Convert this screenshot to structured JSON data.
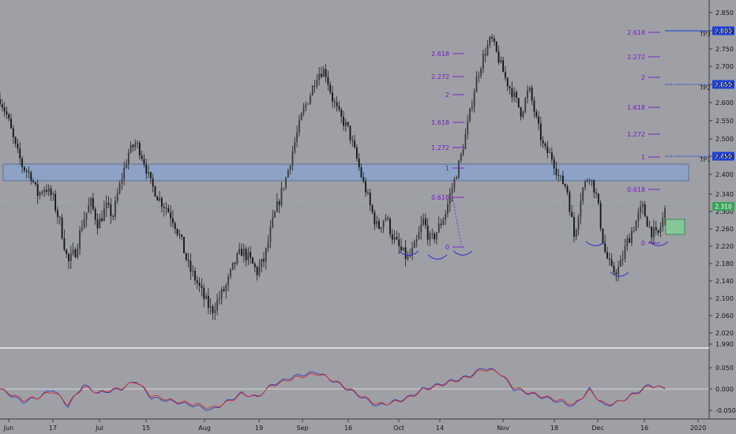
{
  "chart_data": [
    {
      "type": "candlestick",
      "ylim": [
        1.99,
        2.85
      ],
      "y_ticks": [
        "2.850",
        "2.800",
        "2.750",
        "2.700",
        "2.650",
        "2.600",
        "2.550",
        "2.500",
        "2.450",
        "2.400",
        "2.340",
        "2.300",
        "2.260",
        "2.220",
        "2.180",
        "2.140",
        "2.100",
        "2.060",
        "2.020",
        "1.990"
      ],
      "x_ticks": [
        "Jun",
        "17",
        "Jul",
        "15",
        "Aug",
        "19",
        "Sep",
        "16",
        "Oct",
        "14",
        "Nov",
        "18",
        "Dec",
        "16",
        "2020"
      ],
      "current_price": "2.310",
      "price_path": [
        [
          0,
          2.61
        ],
        [
          2,
          2.56
        ],
        [
          4,
          2.48
        ],
        [
          6,
          2.42
        ],
        [
          8,
          2.4
        ],
        [
          10,
          2.34
        ],
        [
          12,
          2.36
        ],
        [
          14,
          2.33
        ],
        [
          16,
          2.27
        ],
        [
          18,
          2.18
        ],
        [
          20,
          2.21
        ],
        [
          22,
          2.28
        ],
        [
          24,
          2.32
        ],
        [
          26,
          2.27
        ],
        [
          28,
          2.31
        ],
        [
          30,
          2.29
        ],
        [
          32,
          2.38
        ],
        [
          34,
          2.46
        ],
        [
          36,
          2.49
        ],
        [
          38,
          2.44
        ],
        [
          40,
          2.37
        ],
        [
          42,
          2.33
        ],
        [
          44,
          2.31
        ],
        [
          46,
          2.28
        ],
        [
          48,
          2.23
        ],
        [
          50,
          2.17
        ],
        [
          52,
          2.14
        ],
        [
          54,
          2.1
        ],
        [
          56,
          2.07
        ],
        [
          58,
          2.1
        ],
        [
          60,
          2.13
        ],
        [
          62,
          2.18
        ],
        [
          64,
          2.21
        ],
        [
          66,
          2.19
        ],
        [
          68,
          2.16
        ],
        [
          70,
          2.19
        ],
        [
          72,
          2.27
        ],
        [
          74,
          2.33
        ],
        [
          76,
          2.4
        ],
        [
          78,
          2.49
        ],
        [
          80,
          2.57
        ],
        [
          82,
          2.62
        ],
        [
          84,
          2.68
        ],
        [
          86,
          2.69
        ],
        [
          88,
          2.61
        ],
        [
          90,
          2.56
        ],
        [
          92,
          2.53
        ],
        [
          94,
          2.46
        ],
        [
          96,
          2.38
        ],
        [
          98,
          2.31
        ],
        [
          100,
          2.26
        ],
        [
          102,
          2.29
        ],
        [
          104,
          2.24
        ],
        [
          106,
          2.21
        ],
        [
          108,
          2.19
        ],
        [
          110,
          2.22
        ],
        [
          112,
          2.28
        ],
        [
          114,
          2.23
        ],
        [
          116,
          2.26
        ],
        [
          118,
          2.3
        ],
        [
          120,
          2.37
        ],
        [
          122,
          2.45
        ],
        [
          124,
          2.55
        ],
        [
          126,
          2.66
        ],
        [
          128,
          2.73
        ],
        [
          130,
          2.78
        ],
        [
          132,
          2.72
        ],
        [
          134,
          2.66
        ],
        [
          136,
          2.62
        ],
        [
          138,
          2.57
        ],
        [
          140,
          2.64
        ],
        [
          142,
          2.55
        ],
        [
          144,
          2.47
        ],
        [
          146,
          2.45
        ],
        [
          148,
          2.39
        ],
        [
          150,
          2.36
        ],
        [
          152,
          2.24
        ],
        [
          154,
          2.35
        ],
        [
          156,
          2.4
        ],
        [
          158,
          2.33
        ],
        [
          160,
          2.21
        ],
        [
          162,
          2.16
        ],
        [
          164,
          2.17
        ],
        [
          166,
          2.23
        ],
        [
          168,
          2.27
        ],
        [
          170,
          2.31
        ],
        [
          172,
          2.26
        ],
        [
          174,
          2.24
        ],
        [
          176,
          2.3
        ]
      ]
    },
    {
      "type": "line",
      "title": "",
      "ylim": [
        -0.07,
        0.07
      ],
      "y_ticks": [
        "0.050",
        "0.000",
        "-0.050"
      ],
      "series": [
        {
          "color": "#2f3fb8",
          "values": [
            [
              0,
              0.0
            ],
            [
              6,
              -0.03
            ],
            [
              10,
              -0.02
            ],
            [
              14,
              0.0
            ],
            [
              18,
              -0.04
            ],
            [
              22,
              0.01
            ],
            [
              26,
              -0.01
            ],
            [
              32,
              0.0
            ],
            [
              36,
              0.02
            ],
            [
              40,
              -0.02
            ],
            [
              46,
              -0.03
            ],
            [
              52,
              -0.04
            ],
            [
              56,
              -0.05
            ],
            [
              60,
              -0.03
            ],
            [
              64,
              -0.01
            ],
            [
              68,
              -0.02
            ],
            [
              72,
              0.01
            ],
            [
              78,
              0.03
            ],
            [
              84,
              0.04
            ],
            [
              88,
              0.02
            ],
            [
              92,
              0.0
            ],
            [
              96,
              -0.02
            ],
            [
              100,
              -0.04
            ],
            [
              104,
              -0.03
            ],
            [
              108,
              -0.02
            ],
            [
              112,
              0.0
            ],
            [
              116,
              0.01
            ],
            [
              120,
              0.02
            ],
            [
              124,
              0.03
            ],
            [
              128,
              0.05
            ],
            [
              132,
              0.04
            ],
            [
              136,
              0.0
            ],
            [
              140,
              -0.01
            ],
            [
              144,
              -0.02
            ],
            [
              148,
              -0.03
            ],
            [
              152,
              -0.04
            ],
            [
              156,
              0.0
            ],
            [
              160,
              -0.04
            ],
            [
              164,
              -0.03
            ],
            [
              168,
              -0.01
            ],
            [
              172,
              0.01
            ],
            [
              176,
              0.0
            ]
          ]
        },
        {
          "color": "#d43030",
          "values": [
            [
              0,
              0.0
            ],
            [
              6,
              -0.025
            ],
            [
              10,
              -0.02
            ],
            [
              14,
              -0.005
            ],
            [
              18,
              -0.035
            ],
            [
              22,
              0.005
            ],
            [
              26,
              -0.008
            ],
            [
              32,
              0.002
            ],
            [
              36,
              0.018
            ],
            [
              40,
              -0.015
            ],
            [
              46,
              -0.028
            ],
            [
              52,
              -0.036
            ],
            [
              56,
              -0.045
            ],
            [
              60,
              -0.032
            ],
            [
              64,
              -0.012
            ],
            [
              68,
              -0.018
            ],
            [
              72,
              0.008
            ],
            [
              78,
              0.026
            ],
            [
              84,
              0.036
            ],
            [
              88,
              0.022
            ],
            [
              92,
              0.002
            ],
            [
              96,
              -0.018
            ],
            [
              100,
              -0.036
            ],
            [
              104,
              -0.032
            ],
            [
              108,
              -0.022
            ],
            [
              112,
              -0.002
            ],
            [
              116,
              0.008
            ],
            [
              120,
              0.018
            ],
            [
              124,
              0.028
            ],
            [
              128,
              0.046
            ],
            [
              132,
              0.04
            ],
            [
              136,
              0.004
            ],
            [
              140,
              -0.008
            ],
            [
              144,
              -0.018
            ],
            [
              148,
              -0.026
            ],
            [
              152,
              -0.036
            ],
            [
              156,
              -0.004
            ],
            [
              160,
              -0.036
            ],
            [
              164,
              -0.03
            ],
            [
              168,
              -0.012
            ],
            [
              172,
              0.008
            ],
            [
              176,
              0.002
            ]
          ]
        }
      ]
    }
  ],
  "fib_left": {
    "levels": [
      "2.618",
      "2.272",
      "2",
      "1.618",
      "1.272",
      "1",
      "0.618",
      "0"
    ]
  },
  "fib_right": {
    "levels": [
      "2.618",
      "2.272",
      "2",
      "1.618",
      "1.272",
      "1",
      "0.618",
      "0"
    ]
  },
  "targets": [
    {
      "label": "TP3",
      "price": "2.800",
      "value": 2.8
    },
    {
      "label": "TP2",
      "price": "2.650",
      "value": 2.65
    },
    {
      "label": "TP1",
      "price": "2.450",
      "value": 2.45
    }
  ],
  "zone": {
    "top": 2.42,
    "bottom": 2.38
  },
  "colors": {
    "zone": "#8ea2c6",
    "fib": "#7a16c4",
    "badge": "#1f3fd8",
    "price_badge": "#3aa35a",
    "box": "#86c79a"
  }
}
